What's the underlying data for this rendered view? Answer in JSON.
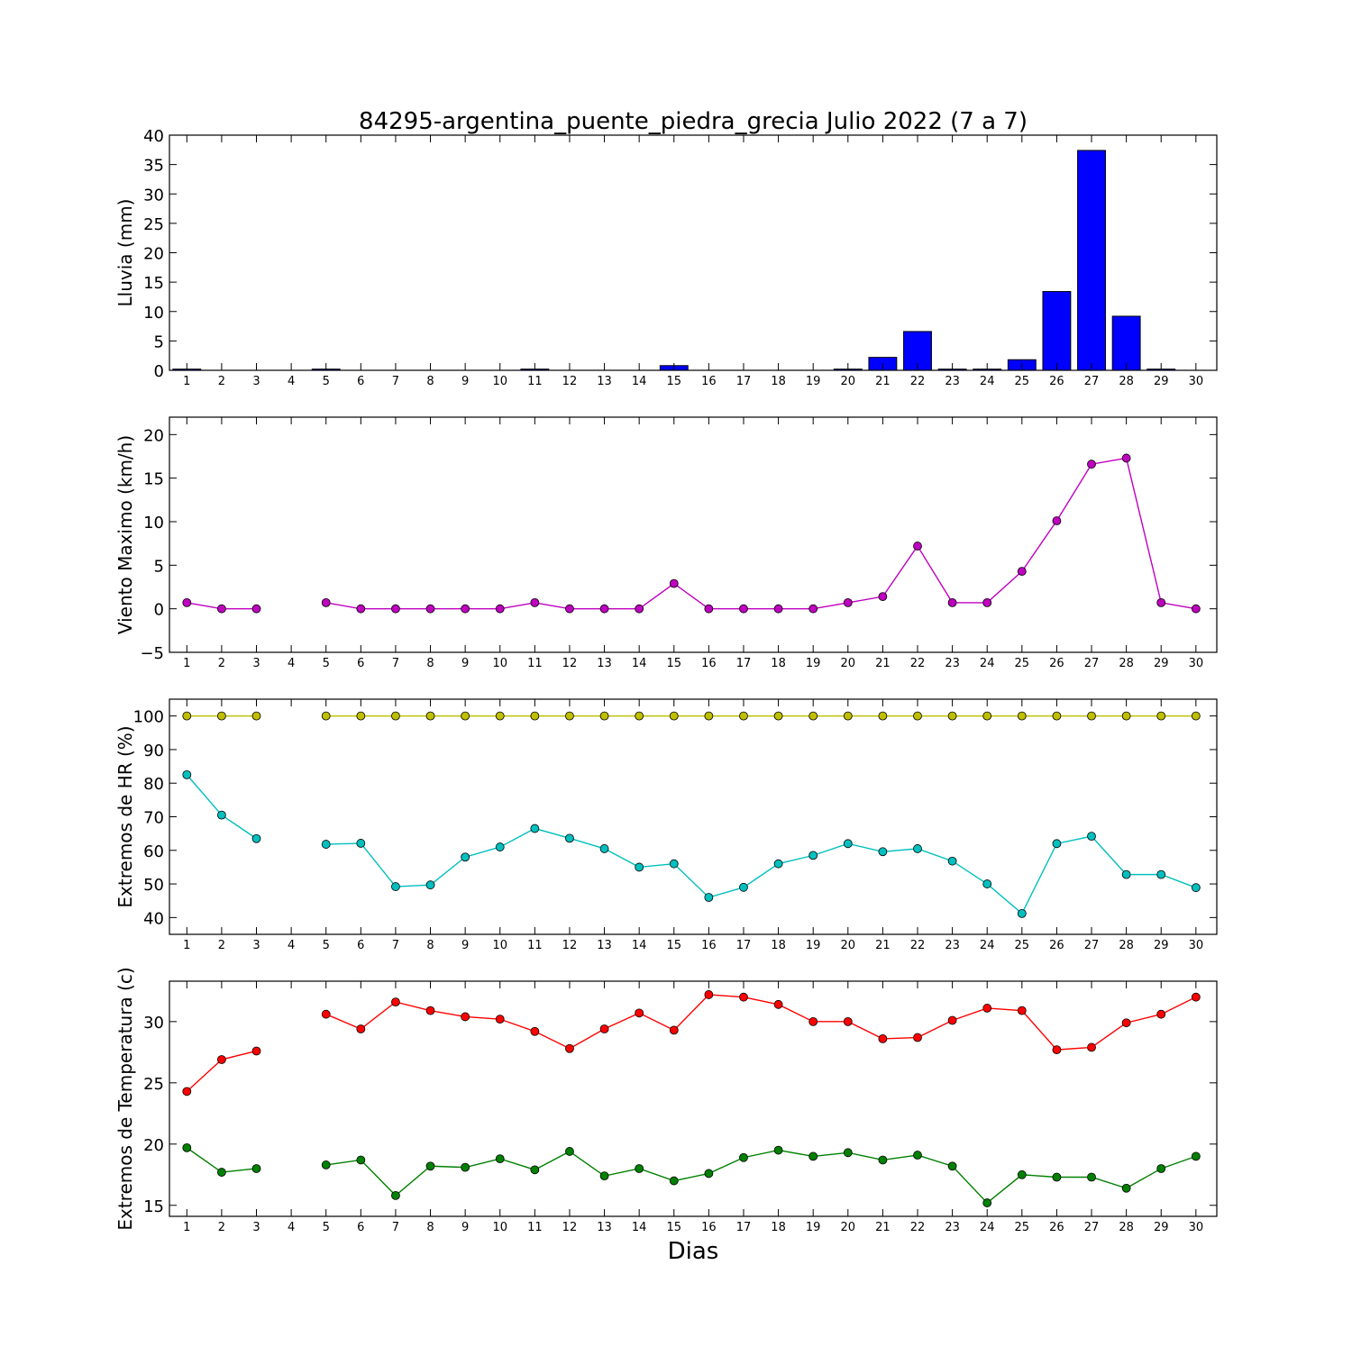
{
  "title": "84295-argentina_puente_piedra_grecia Julio 2022  (7 a 7)",
  "xlabel": "Dias",
  "chart_data": [
    {
      "type": "bar",
      "ylabel": "Lluvia (mm)",
      "ylim": [
        0,
        40
      ],
      "yticks": [
        0,
        5,
        10,
        15,
        20,
        25,
        30,
        35,
        40
      ],
      "categories": [
        1,
        2,
        3,
        4,
        5,
        6,
        7,
        8,
        9,
        10,
        11,
        12,
        13,
        14,
        15,
        16,
        17,
        18,
        19,
        20,
        21,
        22,
        23,
        24,
        25,
        26,
        27,
        28,
        29,
        30
      ],
      "series": [
        {
          "color": "#0000ff",
          "values": [
            0.2,
            0,
            0,
            null,
            0.2,
            0,
            0,
            0,
            0,
            0,
            0.2,
            0,
            0,
            0,
            0.8,
            0,
            0,
            0,
            0,
            0.2,
            2.2,
            6.6,
            0.2,
            0.2,
            1.8,
            13.4,
            37.4,
            9.2,
            0.2,
            0
          ]
        }
      ]
    },
    {
      "type": "line",
      "ylabel": "Viento Maximo (km/h)",
      "ylim": [
        -5,
        22
      ],
      "yticks": [
        -5,
        0,
        5,
        10,
        15,
        20
      ],
      "categories": [
        1,
        2,
        3,
        4,
        5,
        6,
        7,
        8,
        9,
        10,
        11,
        12,
        13,
        14,
        15,
        16,
        17,
        18,
        19,
        20,
        21,
        22,
        23,
        24,
        25,
        26,
        27,
        28,
        29,
        30
      ],
      "series": [
        {
          "color": "#bf00bf",
          "values": [
            0.7,
            0,
            0,
            null,
            0.7,
            0,
            0,
            0,
            0,
            0,
            0.7,
            0,
            0,
            0,
            2.9,
            0,
            0,
            0,
            0,
            0.7,
            1.4,
            7.2,
            0.7,
            0.7,
            4.3,
            10.1,
            16.6,
            17.3,
            0.7,
            0
          ]
        }
      ]
    },
    {
      "type": "line",
      "ylabel": "Extremos de HR (%)",
      "ylim": [
        35,
        105
      ],
      "yticks": [
        40,
        50,
        60,
        70,
        80,
        90,
        100
      ],
      "categories": [
        1,
        2,
        3,
        4,
        5,
        6,
        7,
        8,
        9,
        10,
        11,
        12,
        13,
        14,
        15,
        16,
        17,
        18,
        19,
        20,
        21,
        22,
        23,
        24,
        25,
        26,
        27,
        28,
        29,
        30
      ],
      "series": [
        {
          "color": "#bfbf00",
          "values": [
            100,
            100,
            100,
            null,
            100,
            100,
            100,
            100,
            100,
            100,
            100,
            100,
            100,
            100,
            100,
            100,
            100,
            100,
            100,
            100,
            100,
            100,
            100,
            100,
            100,
            100,
            100,
            100,
            100,
            100
          ]
        },
        {
          "color": "#00bfbf",
          "values": [
            82.5,
            70.5,
            63.5,
            null,
            61.8,
            62.1,
            49.2,
            49.7,
            58,
            61,
            66.5,
            63.6,
            60.5,
            55,
            56,
            46,
            49,
            56,
            58.5,
            62,
            59.6,
            60.5,
            56.8,
            50,
            41.2,
            62,
            64.2,
            52.8,
            52.8,
            48.9
          ]
        }
      ]
    },
    {
      "type": "line",
      "ylabel": "Extremos de Temperatura (c)",
      "ylim": [
        14.1,
        33.3
      ],
      "yticks": [
        15,
        20,
        25,
        30
      ],
      "categories": [
        1,
        2,
        3,
        4,
        5,
        6,
        7,
        8,
        9,
        10,
        11,
        12,
        13,
        14,
        15,
        16,
        17,
        18,
        19,
        20,
        21,
        22,
        23,
        24,
        25,
        26,
        27,
        28,
        29,
        30
      ],
      "series": [
        {
          "color": "#ff0000",
          "values": [
            24.3,
            26.9,
            27.6,
            null,
            30.6,
            29.4,
            31.6,
            30.9,
            30.4,
            30.2,
            29.2,
            27.8,
            29.4,
            30.7,
            29.3,
            32.2,
            32,
            31.4,
            30,
            30,
            28.6,
            28.7,
            30.1,
            31.1,
            30.9,
            27.7,
            27.9,
            29.9,
            30.6,
            32
          ]
        },
        {
          "color": "#008000",
          "values": [
            19.7,
            17.7,
            18,
            null,
            18.3,
            18.7,
            15.8,
            18.2,
            18.1,
            18.8,
            17.9,
            19.4,
            17.4,
            18,
            17,
            17.6,
            18.9,
            19.5,
            19,
            19.3,
            18.7,
            19.1,
            18.2,
            15.2,
            17.5,
            17.3,
            17.3,
            16.4,
            18,
            19
          ]
        }
      ]
    }
  ]
}
